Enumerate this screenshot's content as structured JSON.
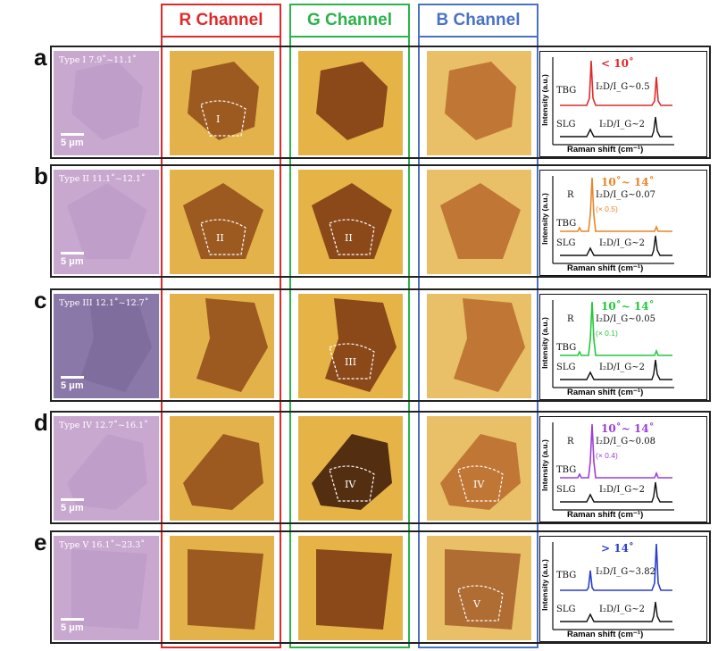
{
  "channels": [
    {
      "key": "r",
      "label": "R Channel",
      "color": "#e02a2a"
    },
    {
      "key": "g",
      "label": "G Channel",
      "color": "#2cb34a"
    },
    {
      "key": "b",
      "label": "B Channel",
      "color": "#4a72c4"
    }
  ],
  "scale_text": "5 μm",
  "spectrum_axes": {
    "ylabel": "Intensity (a.u.)",
    "xlabel": "Raman shift (cm⁻¹)"
  },
  "sample_labels": {
    "tbg": "TBG",
    "slg": "SLG",
    "slg_ratio": "I₂D/I_G~2",
    "r_peak": "R"
  },
  "rows": [
    {
      "letter": "a",
      "type_label": "Type I 7.9˚~11.1˚",
      "angle": "< 10˚",
      "ratio": "I₂D/I_G~0.5",
      "scale_note": "",
      "color": "#e02a2a",
      "region": "I",
      "region_panel": "r"
    },
    {
      "letter": "b",
      "type_label": "Type II 11.1˚~12.1˚",
      "angle": "10˚~ 14˚",
      "ratio": "I₂D/I_G~0.07",
      "scale_note": "(× 0.5)",
      "color": "#e8862a",
      "region": "II",
      "region_panel": "rg"
    },
    {
      "letter": "c",
      "type_label": "Type III 12.1˚~12.7˚",
      "angle": "10˚~ 14˚",
      "ratio": "I₂D/I_G~0.05",
      "scale_note": "(× 0.1)",
      "color": "#22c93a",
      "region": "III",
      "region_panel": "g"
    },
    {
      "letter": "d",
      "type_label": "Type IV 12.7˚~16.1˚",
      "angle": "10˚~ 14˚",
      "ratio": "I₂D/I_G~0.08",
      "scale_note": "(× 0.4)",
      "color": "#9b3fd9",
      "region": "IV",
      "region_panel": "gb"
    },
    {
      "letter": "e",
      "type_label": "Type V 16.1˚~23.3˚",
      "angle": "> 14˚",
      "ratio": "I₂D/I_G~3.82",
      "scale_note": "",
      "color": "#2a3fcc",
      "region": "V",
      "region_panel": "b"
    }
  ]
}
